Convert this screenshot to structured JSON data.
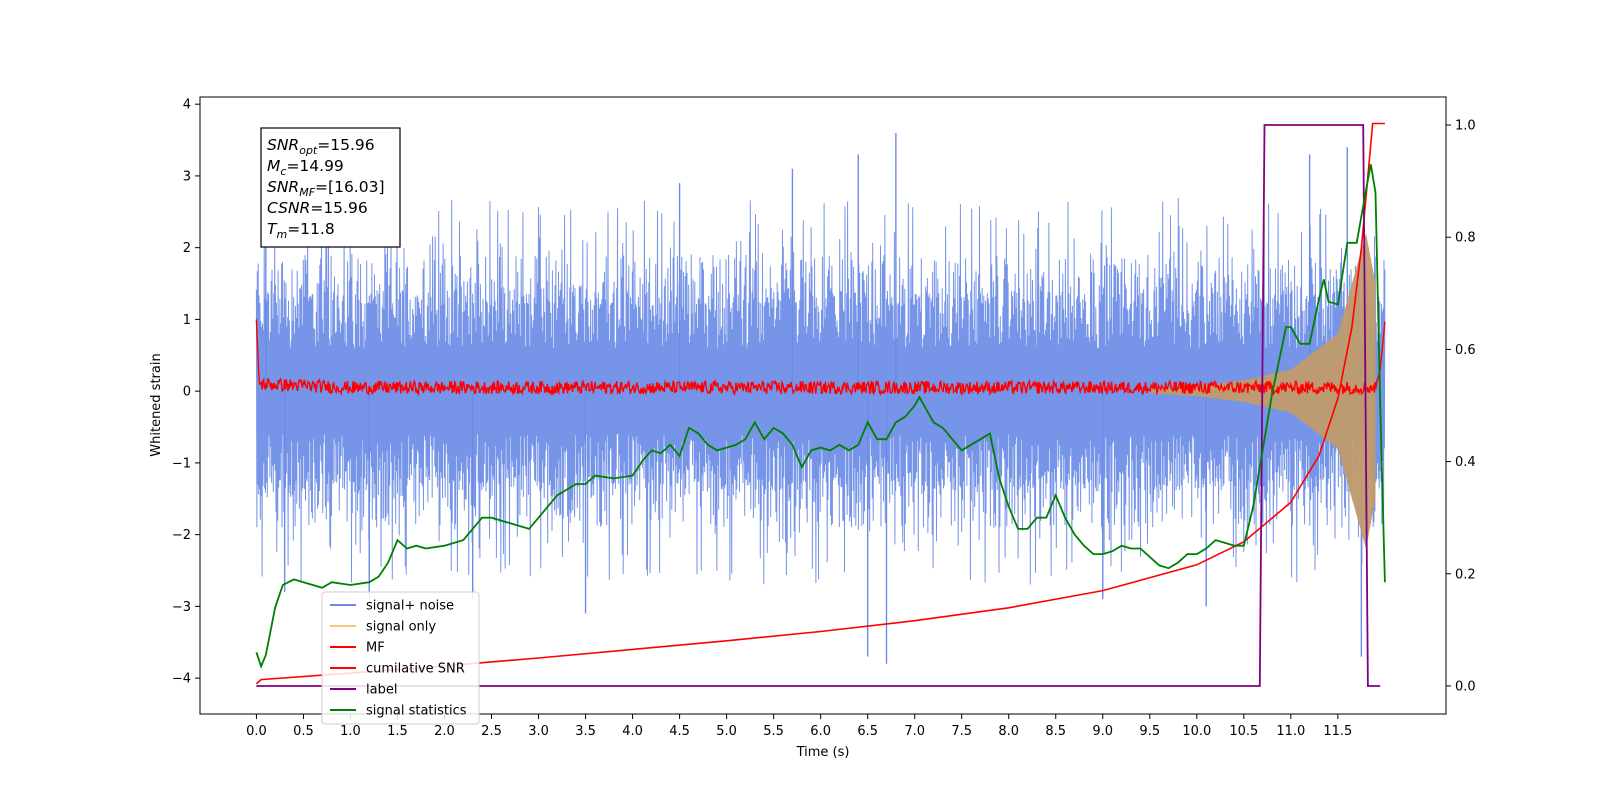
{
  "chart_data": {
    "type": "line",
    "xlabel": "Time (s)",
    "ylabel": "Whitened strain",
    "xlim": [
      -0.6,
      12.65
    ],
    "ylim_left": [
      -4.5,
      4.1
    ],
    "ylim_right": [
      -0.05,
      1.05
    ],
    "x_ticks": [
      0.0,
      0.5,
      1.0,
      1.5,
      2.0,
      2.5,
      3.0,
      3.5,
      4.0,
      4.5,
      5.0,
      5.5,
      6.0,
      6.5,
      7.0,
      7.5,
      8.0,
      8.5,
      9.0,
      9.5,
      10.0,
      10.5,
      11.0,
      11.5
    ],
    "x_tick_labels": [
      "0.0",
      "0.5",
      "1.0",
      "1.5",
      "2.0",
      "2.5",
      "3.0",
      "3.5",
      "4.0",
      "4.5",
      "5.0",
      "5.5",
      "6.0",
      "6.5",
      "7.0",
      "7.5",
      "8.0",
      "8.5",
      "9.0",
      "9.5",
      "10.0",
      "10.5",
      "11.0",
      "11.5"
    ],
    "y_left_ticks": [
      4,
      3,
      2,
      1,
      0,
      -1,
      -2,
      -3,
      -4
    ],
    "y_left_tick_labels": [
      "4",
      "3",
      "2",
      "1",
      "0",
      "−1",
      "−2",
      "−3",
      "−4"
    ],
    "y_right_ticks": [
      1.0,
      0.8,
      0.6,
      0.4,
      0.2,
      0.0
    ],
    "y_right_tick_labels": [
      "1.0",
      "0.8",
      "0.6",
      "0.4",
      "0.2",
      "0.0"
    ],
    "legend_position": "bottom-left",
    "grid": false,
    "series": [
      {
        "name": "signal+ noise",
        "axis": "left",
        "color": "#6a8be6",
        "envelope": {
          "t_start": 0.0,
          "t_end": 12.0,
          "typical_upper": 1.9,
          "typical_lower": -1.9,
          "spikes": [
            [
              0.1,
              2.3
            ],
            [
              0.3,
              -2.8
            ],
            [
              1.2,
              -2.9
            ],
            [
              2.3,
              -2.9
            ],
            [
              3.5,
              -3.1
            ],
            [
              4.5,
              2.9
            ],
            [
              5.7,
              3.1
            ],
            [
              6.4,
              3.3
            ],
            [
              6.5,
              -3.7
            ],
            [
              6.7,
              -3.8
            ],
            [
              6.8,
              3.6
            ],
            [
              9.0,
              -2.9
            ],
            [
              10.1,
              -3.0
            ],
            [
              11.2,
              3.3
            ],
            [
              11.6,
              3.4
            ],
            [
              11.75,
              -3.7
            ]
          ]
        }
      },
      {
        "name": "signal only",
        "axis": "left",
        "color": "#f7c77b",
        "description_points": [
          [
            9.5,
            0.03
          ],
          [
            10.0,
            0.07
          ],
          [
            10.5,
            0.15
          ],
          [
            11.0,
            0.3
          ],
          [
            11.5,
            0.8
          ],
          [
            11.8,
            2.2
          ],
          [
            11.9,
            1.5
          ]
        ]
      },
      {
        "name": "MF",
        "axis": "left",
        "color": "#ff0000",
        "points": [
          [
            0.0,
            1.0
          ],
          [
            0.03,
            0.1
          ],
          [
            1.0,
            0.05
          ],
          [
            2.0,
            0.05
          ],
          [
            4.0,
            0.05
          ],
          [
            6.0,
            0.05
          ],
          [
            8.0,
            0.05
          ],
          [
            10.0,
            0.05
          ],
          [
            11.9,
            0.05
          ],
          [
            11.95,
            0.3
          ],
          [
            12.0,
            0.97
          ]
        ],
        "jitter": 0.09
      },
      {
        "name": "cumilative SNR",
        "axis": "left",
        "color": "#ff0000",
        "points": [
          [
            0.0,
            -4.08
          ],
          [
            0.05,
            -4.02
          ],
          [
            1.0,
            -3.93
          ],
          [
            2.0,
            -3.83
          ],
          [
            3.0,
            -3.72
          ],
          [
            4.0,
            -3.6
          ],
          [
            5.0,
            -3.48
          ],
          [
            6.0,
            -3.35
          ],
          [
            7.0,
            -3.2
          ],
          [
            8.0,
            -3.02
          ],
          [
            9.0,
            -2.78
          ],
          [
            10.0,
            -2.42
          ],
          [
            10.5,
            -2.1
          ],
          [
            11.0,
            -1.55
          ],
          [
            11.3,
            -0.9
          ],
          [
            11.5,
            -0.1
          ],
          [
            11.65,
            0.9
          ],
          [
            11.75,
            2.0
          ],
          [
            11.82,
            3.0
          ],
          [
            11.87,
            3.73
          ],
          [
            12.0,
            3.73
          ]
        ]
      },
      {
        "name": "label",
        "axis": "right",
        "color": "#800080",
        "points": [
          [
            0.0,
            0.0
          ],
          [
            10.67,
            0.0
          ],
          [
            10.72,
            1.0
          ],
          [
            11.77,
            1.0
          ],
          [
            11.82,
            0.0
          ],
          [
            11.95,
            0.0
          ]
        ]
      },
      {
        "name": "signal statistics",
        "axis": "right",
        "color": "#008000",
        "points": [
          [
            0.0,
            0.06
          ],
          [
            0.05,
            0.035
          ],
          [
            0.1,
            0.055
          ],
          [
            0.2,
            0.14
          ],
          [
            0.28,
            0.18
          ],
          [
            0.4,
            0.19
          ],
          [
            0.5,
            0.185
          ],
          [
            0.7,
            0.175
          ],
          [
            0.8,
            0.185
          ],
          [
            1.0,
            0.18
          ],
          [
            1.2,
            0.185
          ],
          [
            1.3,
            0.195
          ],
          [
            1.4,
            0.22
          ],
          [
            1.5,
            0.26
          ],
          [
            1.6,
            0.245
          ],
          [
            1.7,
            0.25
          ],
          [
            1.8,
            0.245
          ],
          [
            2.0,
            0.25
          ],
          [
            2.2,
            0.26
          ],
          [
            2.4,
            0.3
          ],
          [
            2.5,
            0.3
          ],
          [
            2.7,
            0.29
          ],
          [
            2.9,
            0.28
          ],
          [
            3.0,
            0.3
          ],
          [
            3.2,
            0.34
          ],
          [
            3.4,
            0.36
          ],
          [
            3.5,
            0.36
          ],
          [
            3.6,
            0.375
          ],
          [
            3.8,
            0.37
          ],
          [
            4.0,
            0.375
          ],
          [
            4.1,
            0.4
          ],
          [
            4.2,
            0.42
          ],
          [
            4.3,
            0.415
          ],
          [
            4.4,
            0.43
          ],
          [
            4.5,
            0.41
          ],
          [
            4.6,
            0.46
          ],
          [
            4.7,
            0.45
          ],
          [
            4.8,
            0.43
          ],
          [
            4.9,
            0.42
          ],
          [
            5.0,
            0.425
          ],
          [
            5.1,
            0.43
          ],
          [
            5.2,
            0.44
          ],
          [
            5.3,
            0.47
          ],
          [
            5.4,
            0.44
          ],
          [
            5.5,
            0.46
          ],
          [
            5.6,
            0.45
          ],
          [
            5.7,
            0.43
          ],
          [
            5.8,
            0.39
          ],
          [
            5.9,
            0.42
          ],
          [
            6.0,
            0.425
          ],
          [
            6.1,
            0.42
          ],
          [
            6.2,
            0.43
          ],
          [
            6.3,
            0.42
          ],
          [
            6.4,
            0.43
          ],
          [
            6.5,
            0.47
          ],
          [
            6.6,
            0.44
          ],
          [
            6.7,
            0.44
          ],
          [
            6.8,
            0.47
          ],
          [
            6.9,
            0.48
          ],
          [
            7.0,
            0.5
          ],
          [
            7.05,
            0.515
          ],
          [
            7.2,
            0.47
          ],
          [
            7.3,
            0.46
          ],
          [
            7.4,
            0.44
          ],
          [
            7.5,
            0.42
          ],
          [
            7.6,
            0.43
          ],
          [
            7.7,
            0.44
          ],
          [
            7.8,
            0.45
          ],
          [
            7.9,
            0.37
          ],
          [
            8.0,
            0.32
          ],
          [
            8.1,
            0.28
          ],
          [
            8.2,
            0.28
          ],
          [
            8.3,
            0.3
          ],
          [
            8.4,
            0.3
          ],
          [
            8.5,
            0.34
          ],
          [
            8.6,
            0.3
          ],
          [
            8.7,
            0.27
          ],
          [
            8.8,
            0.25
          ],
          [
            8.9,
            0.235
          ],
          [
            9.0,
            0.235
          ],
          [
            9.1,
            0.24
          ],
          [
            9.2,
            0.25
          ],
          [
            9.3,
            0.245
          ],
          [
            9.4,
            0.245
          ],
          [
            9.5,
            0.23
          ],
          [
            9.6,
            0.215
          ],
          [
            9.7,
            0.21
          ],
          [
            9.8,
            0.22
          ],
          [
            9.9,
            0.235
          ],
          [
            10.0,
            0.235
          ],
          [
            10.1,
            0.245
          ],
          [
            10.2,
            0.26
          ],
          [
            10.3,
            0.255
          ],
          [
            10.4,
            0.25
          ],
          [
            10.5,
            0.25
          ],
          [
            10.6,
            0.32
          ],
          [
            10.7,
            0.42
          ],
          [
            10.8,
            0.52
          ],
          [
            10.9,
            0.6
          ],
          [
            10.95,
            0.64
          ],
          [
            11.0,
            0.64
          ],
          [
            11.1,
            0.61
          ],
          [
            11.2,
            0.61
          ],
          [
            11.3,
            0.69
          ],
          [
            11.35,
            0.725
          ],
          [
            11.4,
            0.685
          ],
          [
            11.5,
            0.68
          ],
          [
            11.6,
            0.79
          ],
          [
            11.7,
            0.79
          ],
          [
            11.8,
            0.885
          ],
          [
            11.85,
            0.93
          ],
          [
            11.9,
            0.88
          ],
          [
            11.95,
            0.5
          ],
          [
            12.0,
            0.185
          ]
        ]
      }
    ]
  },
  "info_box": {
    "lines": [
      {
        "sym": "SNR",
        "sub": "opt",
        "value": "=15.96"
      },
      {
        "sym": "M",
        "sub": "c",
        "value": "=14.99"
      },
      {
        "sym": "SNR",
        "sub": "MF",
        "value": "=[16.03]"
      },
      {
        "sym": "CSNR",
        "sub": "",
        "value": "=15.96"
      },
      {
        "sym": "T",
        "sub": "m",
        "value": "=11.8"
      }
    ]
  }
}
